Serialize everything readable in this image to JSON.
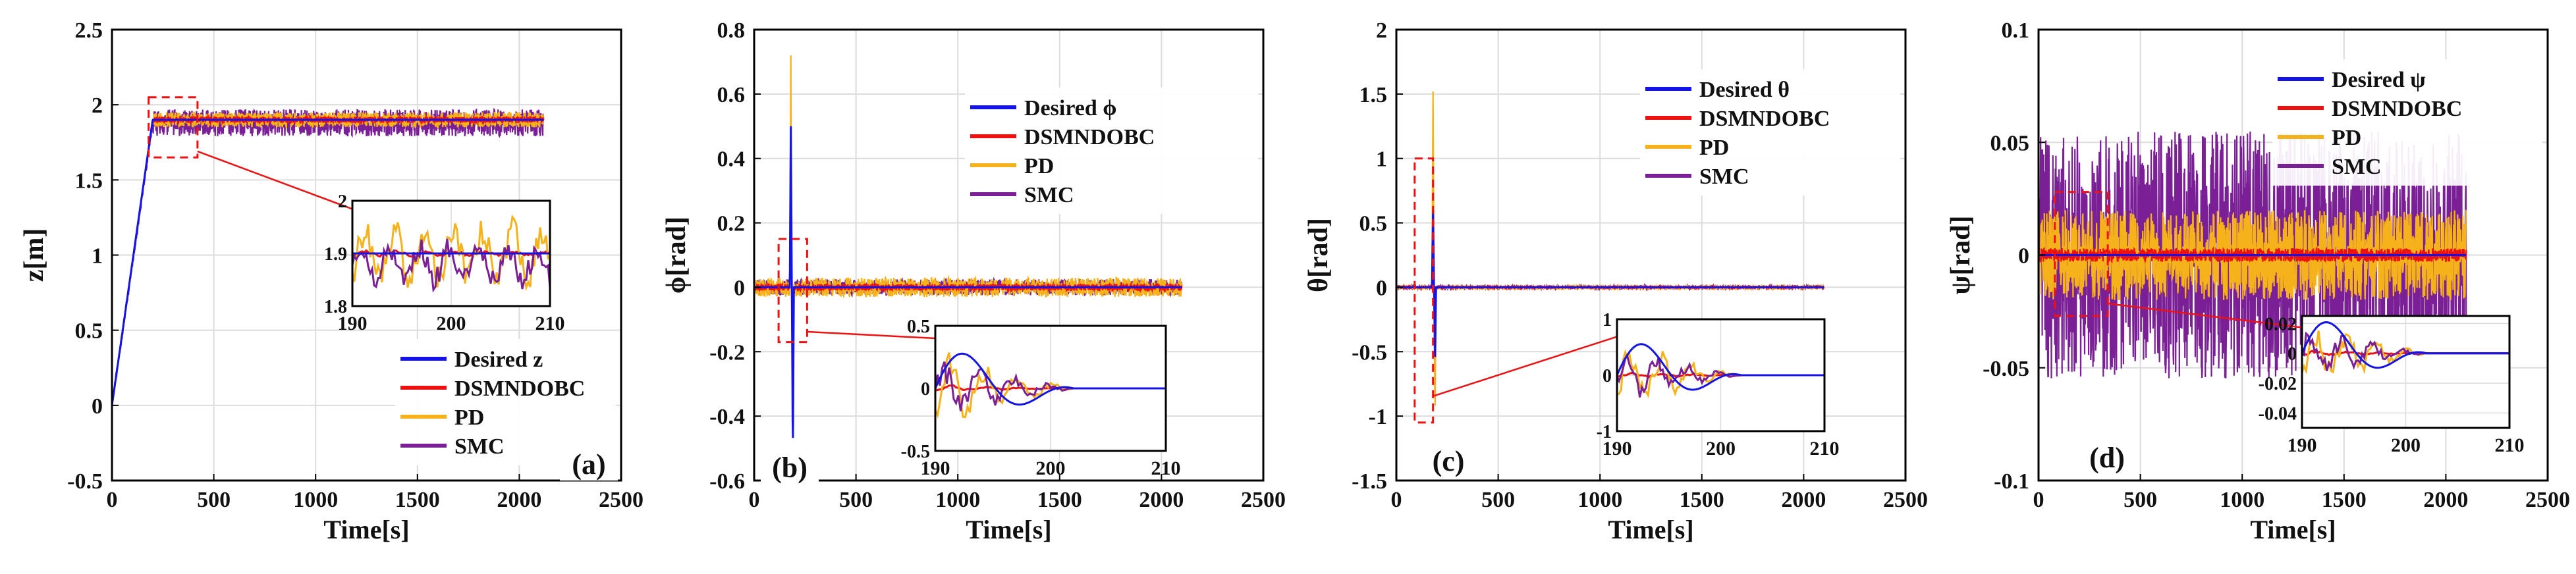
{
  "colors": {
    "desired": "#1414e6",
    "dsmndobc": "#ee1111",
    "pd": "#f5b21a",
    "smc": "#7a1f96",
    "grid": "#dcdcdc",
    "frame": "#000000",
    "zoom_box": "#ee1111"
  },
  "chart_data": [
    {
      "id": "a",
      "type": "line",
      "panel_label": "(a)",
      "xlabel": "Time[s]",
      "ylabel": "z[m]",
      "xlim": [
        0,
        2500
      ],
      "ylim": [
        -0.5,
        2.5
      ],
      "xticks": [
        0,
        500,
        1000,
        1500,
        2000,
        2500
      ],
      "yticks": [
        -0.5,
        0,
        0.5,
        1,
        1.5,
        2,
        2.5
      ],
      "xtick_labels": [
        "0",
        "500",
        "1000",
        "1500",
        "2000",
        "2500"
      ],
      "ytick_labels": [
        "-0.5",
        "0",
        "0.5",
        "1",
        "1.5",
        "2",
        "2.5"
      ],
      "grid": true,
      "legend_position": "bottom-right",
      "series": [
        {
          "name": "Desired z",
          "color_key": "desired",
          "profile": "ramp",
          "final": 1.9,
          "noise": 0
        },
        {
          "name": "DSMNDOBC",
          "color_key": "dsmndobc",
          "profile": "ramp",
          "final": 1.9,
          "noise": 0.02
        },
        {
          "name": "PD",
          "color_key": "pd",
          "profile": "ramp",
          "final": 1.9,
          "noise": 0.05
        },
        {
          "name": "SMC",
          "color_key": "smc",
          "profile": "ramp",
          "final": 1.88,
          "noise": 0.09
        }
      ],
      "zoom_region": {
        "x": [
          180,
          420
        ],
        "y": [
          1.65,
          2.05
        ]
      },
      "inset": {
        "xlim": [
          190,
          210
        ],
        "ylim": [
          1.8,
          2.0
        ],
        "xticks": [
          190,
          200,
          210
        ],
        "yticks": [
          1.8,
          1.9,
          2.0
        ],
        "xtick_labels": [
          "190",
          "200",
          "210"
        ],
        "ytick_labels": [
          "1.8",
          "1.9",
          "2"
        ]
      }
    },
    {
      "id": "b",
      "type": "line",
      "panel_label": "(b)",
      "xlabel": "Time[s]",
      "ylabel": "ϕ[rad]",
      "xlim": [
        0,
        2500
      ],
      "ylim": [
        -0.6,
        0.8
      ],
      "xticks": [
        0,
        500,
        1000,
        1500,
        2000,
        2500
      ],
      "yticks": [
        -0.6,
        -0.4,
        -0.2,
        0,
        0.2,
        0.4,
        0.6,
        0.8
      ],
      "xtick_labels": [
        "0",
        "500",
        "1000",
        "1500",
        "2000",
        "2500"
      ],
      "ytick_labels": [
        "-0.6",
        "-0.4",
        "-0.2",
        "0",
        "0.2",
        "0.4",
        "0.6",
        "0.8"
      ],
      "grid": true,
      "legend_position": "top-right",
      "series": [
        {
          "name": "Desired ϕ",
          "color_key": "desired",
          "profile": "spike",
          "spike_hi": 0.5,
          "spike_lo": -0.52,
          "noise": 0
        },
        {
          "name": "DSMNDOBC",
          "color_key": "dsmndobc",
          "profile": "spike",
          "spike_hi": 0.3,
          "spike_lo": -0.3,
          "noise": 0.01
        },
        {
          "name": "PD",
          "color_key": "pd",
          "profile": "spike",
          "spike_hi": 0.72,
          "spike_lo": -0.48,
          "noise": 0.03
        },
        {
          "name": "SMC",
          "color_key": "smc",
          "profile": "spike",
          "spike_hi": 0.4,
          "spike_lo": -0.42,
          "noise": 0.025
        }
      ],
      "zoom_region": {
        "x": [
          120,
          260
        ],
        "y": [
          -0.17,
          0.15
        ]
      },
      "inset": {
        "xlim": [
          190,
          210
        ],
        "ylim": [
          -0.5,
          0.5
        ],
        "xticks": [
          190,
          200,
          210
        ],
        "yticks": [
          -0.5,
          0,
          0.5
        ],
        "xtick_labels": [
          "190",
          "200",
          "210"
        ],
        "ytick_labels": [
          "-0.5",
          "0",
          "0.5"
        ]
      }
    },
    {
      "id": "c",
      "type": "line",
      "panel_label": "(c)",
      "xlabel": "Time[s]",
      "ylabel": "θ[rad]",
      "xlim": [
        0,
        2500
      ],
      "ylim": [
        -1.5,
        2
      ],
      "xticks": [
        0,
        500,
        1000,
        1500,
        2000,
        2500
      ],
      "yticks": [
        -1.5,
        -1,
        -0.5,
        0,
        0.5,
        1,
        1.5,
        2
      ],
      "xtick_labels": [
        "0",
        "500",
        "1000",
        "1500",
        "2000",
        "2500"
      ],
      "ytick_labels": [
        "-1.5",
        "-1",
        "-0.5",
        "0",
        "0.5",
        "1",
        "1.5",
        "2"
      ],
      "grid": true,
      "legend_position": "top-right",
      "series": [
        {
          "name": "Desired θ",
          "color_key": "desired",
          "profile": "spike",
          "spike_hi": 0.6,
          "spike_lo": -0.6,
          "noise": 0
        },
        {
          "name": "DSMNDOBC",
          "color_key": "dsmndobc",
          "profile": "spike",
          "spike_hi": 0.3,
          "spike_lo": -0.3,
          "noise": 0.005
        },
        {
          "name": "PD",
          "color_key": "pd",
          "profile": "spike",
          "spike_hi": 1.52,
          "spike_lo": -1.02,
          "noise": 0.01
        },
        {
          "name": "SMC",
          "color_key": "smc",
          "profile": "spike",
          "spike_hi": 0.4,
          "spike_lo": -0.4,
          "noise": 0.012
        }
      ],
      "zoom_region": {
        "x": [
          90,
          180
        ],
        "y": [
          -1.05,
          1.0
        ]
      },
      "inset": {
        "xlim": [
          190,
          210
        ],
        "ylim": [
          -1,
          1
        ],
        "xticks": [
          190,
          200,
          210
        ],
        "yticks": [
          -1,
          0,
          1
        ],
        "xtick_labels": [
          "190",
          "200",
          "210"
        ],
        "ytick_labels": [
          "-1",
          "0",
          "1"
        ]
      }
    },
    {
      "id": "d",
      "type": "line",
      "panel_label": "(d)",
      "xlabel": "Time[s]",
      "ylabel": "ψ[rad]",
      "xlim": [
        0,
        2500
      ],
      "ylim": [
        -0.1,
        0.1
      ],
      "xticks": [
        0,
        500,
        1000,
        1500,
        2000,
        2500
      ],
      "yticks": [
        -0.1,
        -0.05,
        0,
        0.05,
        0.1
      ],
      "xtick_labels": [
        "0",
        "500",
        "1000",
        "1500",
        "2000",
        "2500"
      ],
      "ytick_labels": [
        "-0.1",
        "-0.05",
        "0",
        "0.05",
        "0.1"
      ],
      "grid": true,
      "legend_position": "top-right",
      "series": [
        {
          "name": "Desired ψ",
          "color_key": "desired",
          "profile": "flat",
          "noise": 0
        },
        {
          "name": "DSMNDOBC",
          "color_key": "dsmndobc",
          "profile": "flat",
          "noise": 0.003
        },
        {
          "name": "PD",
          "color_key": "pd",
          "profile": "flat",
          "noise": 0.02
        },
        {
          "name": "SMC",
          "color_key": "smc",
          "profile": "flat",
          "noise": 0.055
        }
      ],
      "zoom_region": {
        "x": [
          80,
          340
        ],
        "y": [
          -0.027,
          0.028
        ]
      },
      "inset": {
        "xlim": [
          190,
          210
        ],
        "ylim": [
          -0.05,
          0.025
        ],
        "xticks": [
          190,
          200,
          210
        ],
        "yticks": [
          -0.04,
          -0.02,
          0,
          0.02
        ],
        "xtick_labels": [
          "190",
          "200",
          "210"
        ],
        "ytick_labels": [
          "-0.04",
          "-0.02",
          "0",
          "0.02"
        ]
      }
    }
  ]
}
